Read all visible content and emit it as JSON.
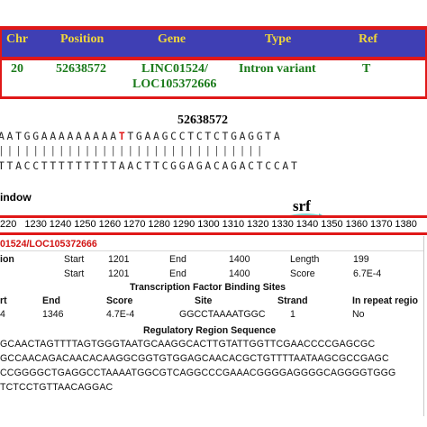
{
  "header": {
    "columns": [
      "Chr",
      "Position",
      "Gene",
      "Type",
      "Ref"
    ],
    "row": {
      "chr": "20",
      "position": "52638572",
      "gene_line1": "LINC01524/",
      "gene_line2": "LOC105372666",
      "type": "Intron variant",
      "ref": "T"
    }
  },
  "sequence": {
    "position_label": "52638572",
    "top_before": "AATGGAAAAAAAAA",
    "top_highlight": "T",
    "top_after": "TGAAGCCTCTCTGAGGTA",
    "ticks": "|||||||||||||||||||||||||||||||",
    "bottom": "TTACCTTTTTTTTTAACTTCGGAGACAGACTCCAT"
  },
  "window": {
    "label": "indow",
    "motif": "srf",
    "accent_color": "#7fd6d0"
  },
  "scale": {
    "labels": [
      "220",
      "1230",
      "1240",
      "1250",
      "1260",
      "1270",
      "1280",
      "1290",
      "1300",
      "1310",
      "1320",
      "1330",
      "1340",
      "1350",
      "1360",
      "1370",
      "1380"
    ]
  },
  "detail": {
    "gene": "01524/LOC105372666",
    "region_row1": {
      "label": "ion",
      "start_label": "Start",
      "start": "1201",
      "end_label": "End",
      "end": "1400",
      "length_label": "Length",
      "length": "199"
    },
    "region_row2": {
      "start_label": "Start",
      "start": "1201",
      "end_label": "End",
      "end": "1400",
      "score_label": "Score",
      "score": "6.7E-4"
    },
    "tfbs_title": "Transcription Factor Binding Sites",
    "tfbs_headers": {
      "start": "rt",
      "end": "End",
      "score": "Score",
      "site": "Site",
      "strand": "Strand",
      "repeat": "In repeat regio"
    },
    "tfbs_row": {
      "start": "4",
      "end": "1346",
      "score": "4.7E-4",
      "site": "GGCCTAAAATGGC",
      "strand": "1",
      "repeat": "No"
    },
    "rrs_title": "Regulatory Region Sequence",
    "rrs_lines": [
      "GCAACTAGTTTTAGTGGGTAATGCAAGGCACTTGTATTGGTTCGAACCCCGAGCGC",
      "GCCAACAGACAACACAAGGCGGTGTGGAGCAACACGCTGTTTTAATAAGCGCCGAGC",
      "CCGGGGCTGAGGCCTAAAATGGCGTCAGGCCCGAAACGGGGAGGGGCAGGGGTGGG",
      "TCTCCTGTTAACAGGAC"
    ]
  }
}
